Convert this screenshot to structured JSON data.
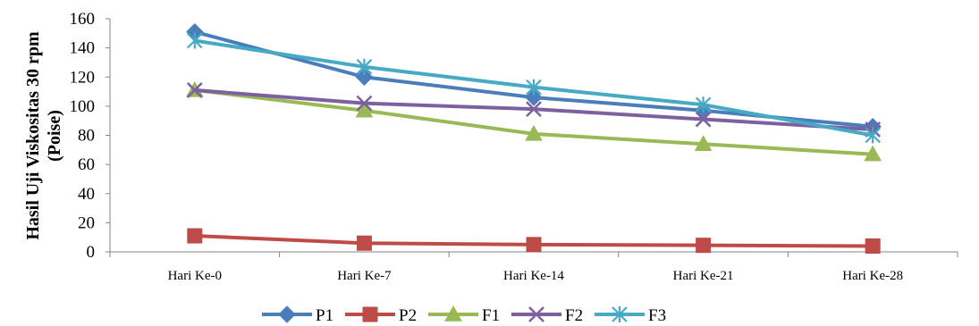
{
  "chart_data": {
    "type": "line",
    "ylabel": [
      "Hasil Uji Viskositas 30 rpm",
      "(Poise)"
    ],
    "xlabel": "",
    "categories": [
      "Hari Ke-0",
      "Hari Ke-7",
      "Hari Ke-14",
      "Hari Ke-21",
      "Hari Ke-28"
    ],
    "ylim": [
      0,
      160
    ],
    "yticks": [
      "0",
      "20",
      "40",
      "60",
      "80",
      "100",
      "120",
      "140",
      "160"
    ],
    "grid": false,
    "legend_position": "bottom",
    "series": [
      {
        "name": "P1",
        "color": "#4a7ebb",
        "marker": "diamond",
        "values": [
          151,
          120,
          106,
          97,
          86
        ]
      },
      {
        "name": "P2",
        "color": "#be4b48",
        "marker": "square",
        "values": [
          11,
          6,
          5,
          4.5,
          4
        ]
      },
      {
        "name": "F1",
        "color": "#98b954",
        "marker": "triangle",
        "values": [
          111,
          97,
          81,
          74,
          67
        ]
      },
      {
        "name": "F2",
        "color": "#7d60a0",
        "marker": "x",
        "values": [
          111,
          102,
          98,
          91,
          84
        ]
      },
      {
        "name": "F3",
        "color": "#46aac5",
        "marker": "star",
        "values": [
          145,
          127,
          113,
          101,
          80
        ]
      }
    ]
  }
}
